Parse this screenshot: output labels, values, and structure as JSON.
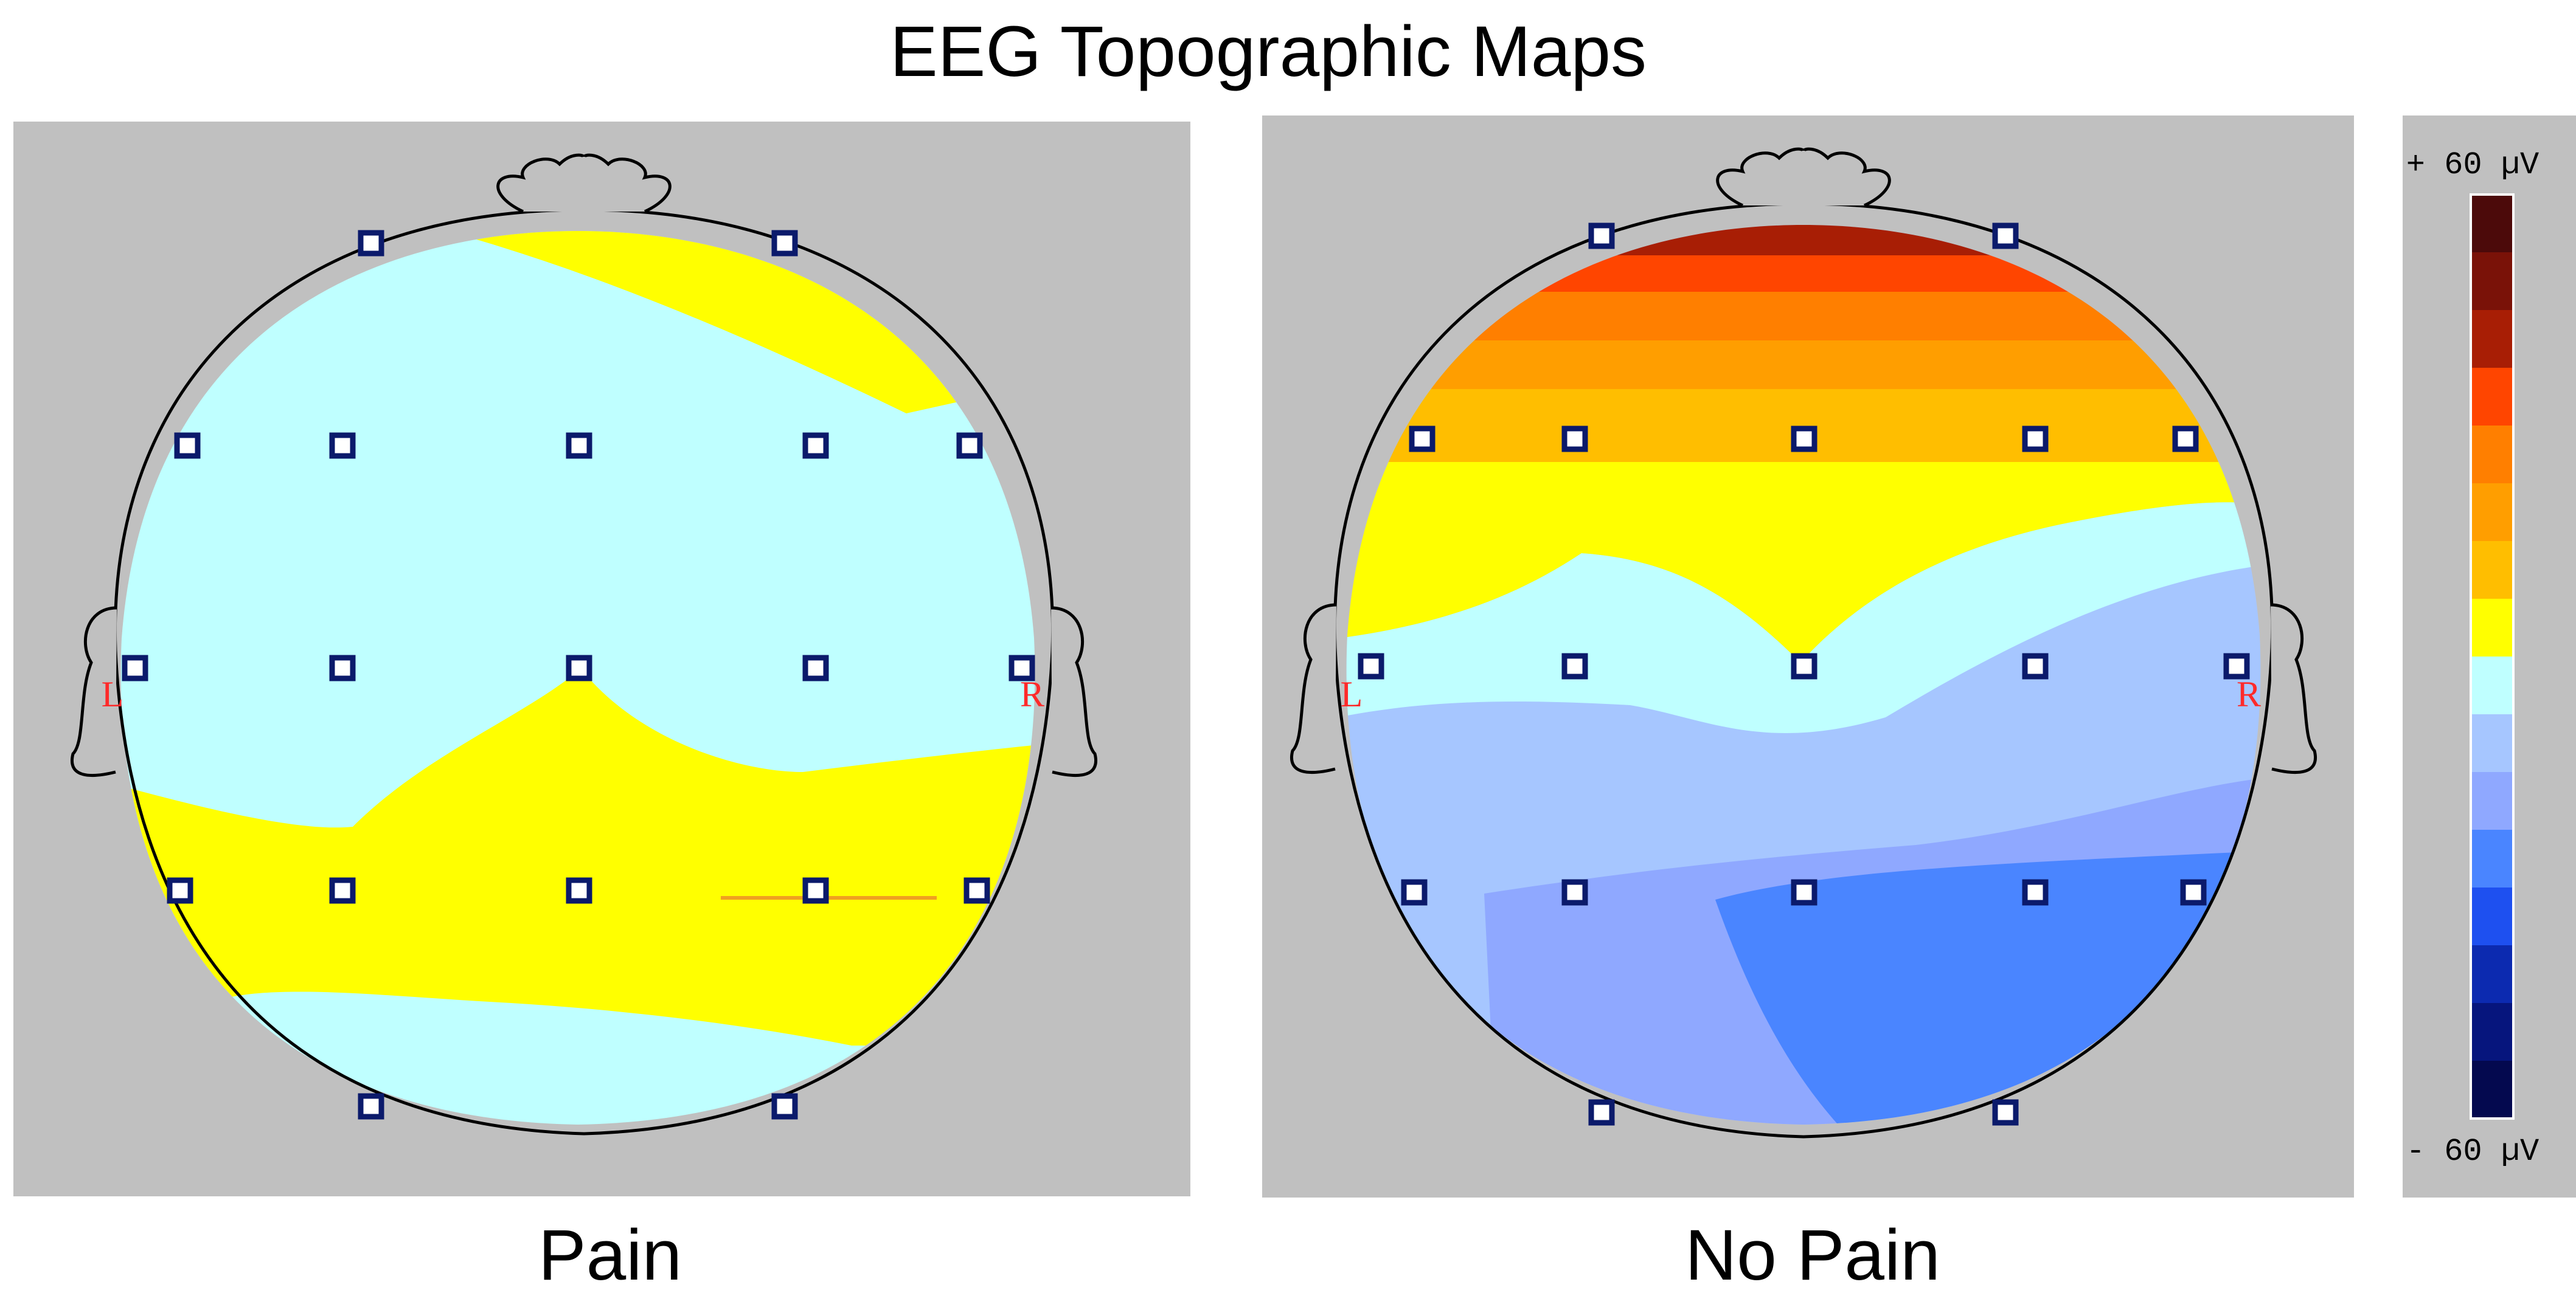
{
  "title": "EEG Topographic Maps",
  "maps": [
    {
      "id": "pain",
      "label": "Pain",
      "left_marker": "L",
      "right_marker": "R",
      "electrode_count": 19
    },
    {
      "id": "no-pain",
      "label": "No Pain",
      "left_marker": "L",
      "right_marker": "R",
      "electrode_count": 19
    }
  ],
  "scale": {
    "max_label": "+ 60 µV",
    "min_label": "- 60 µV",
    "max_value": 60,
    "min_value": -60,
    "unit": "µV",
    "colors": [
      "#4c0a0a",
      "#7a1208",
      "#a81e05",
      "#ff4500",
      "#ff7f00",
      "#ff9e00",
      "#ffbe00",
      "#ffff00",
      "#bfffff",
      "#a6c6ff",
      "#8fa8ff",
      "#4a85ff",
      "#1e50f0",
      "#0c2ab0",
      "#06157d",
      "#04094f"
    ]
  },
  "colors": {
    "background": "#ffffff",
    "panel": "#c0c0c0",
    "electrode": "#0b1a6b",
    "marker": "#ff2a2a"
  }
}
